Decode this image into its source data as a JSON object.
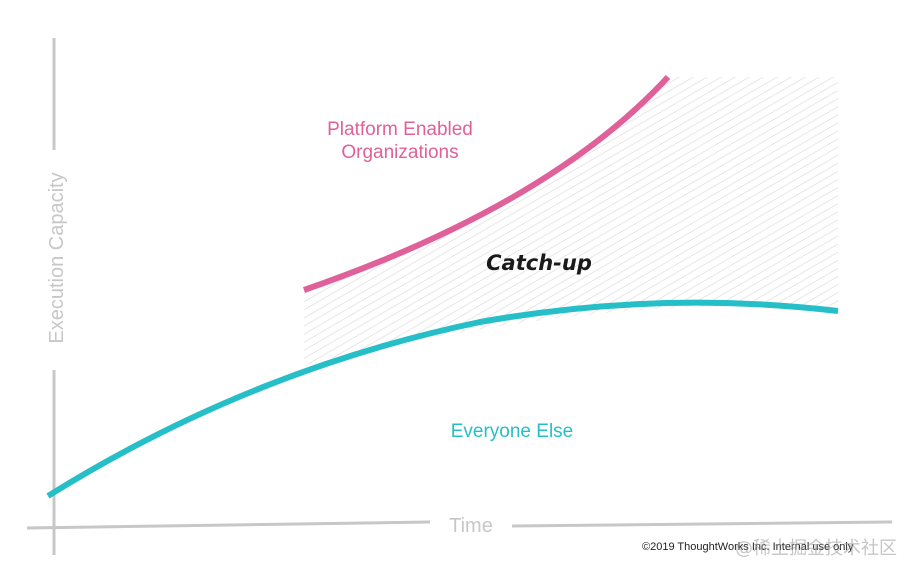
{
  "diagram": {
    "y_axis_label": "Execution Capacity",
    "x_axis_label": "Time",
    "gap_label": "Catch-up",
    "series": [
      {
        "name": "Platform Enabled Organizations",
        "label_lines": [
          "Platform Enabled",
          "Organizations"
        ],
        "color": "#e0609a"
      },
      {
        "name": "Everyone Else",
        "label_lines": [
          "Everyone Else"
        ],
        "color": "#26bfc8"
      }
    ],
    "axis_color": "#c7c7c7",
    "hatch_color": "#d9d9d9",
    "copyright": "©2019 ThoughtWorks Inc. Internal use only",
    "watermark": "@稀土掘金技术社区"
  }
}
